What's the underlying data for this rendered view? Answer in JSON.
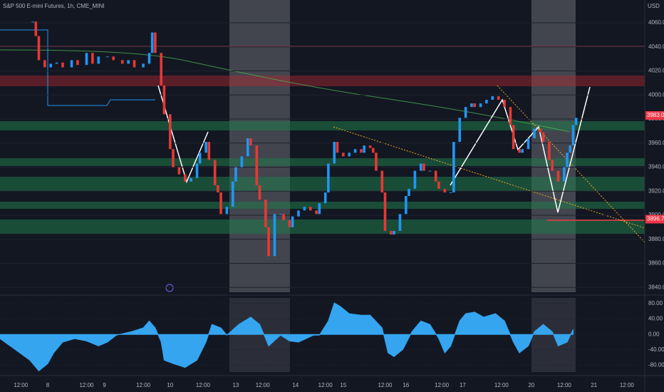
{
  "chart_data": [
    {
      "type": "candlestick",
      "title": "S&P 500 E-mini Futures, 1h, CME_MINI",
      "currency": "USD",
      "up_color": "#2196f3",
      "down_color": "#e53935",
      "xlim": [
        0,
        216
      ],
      "ylim": [
        3836,
        4079
      ],
      "xticks": [
        {
          "value": 7,
          "label": "12:00"
        },
        {
          "value": 16,
          "label": "8"
        },
        {
          "value": 29,
          "label": "12:00"
        },
        {
          "value": 35,
          "label": "9"
        },
        {
          "value": 48,
          "label": "12:00"
        },
        {
          "value": 57,
          "label": "10"
        },
        {
          "value": 68,
          "label": "12:00"
        },
        {
          "value": 79,
          "label": "13"
        },
        {
          "value": 88,
          "label": "12:00"
        },
        {
          "value": 99,
          "label": "14"
        },
        {
          "value": 109,
          "label": "12:00"
        },
        {
          "value": 115,
          "label": "15"
        },
        {
          "value": 129,
          "label": "12:00"
        },
        {
          "value": 136,
          "label": "16"
        },
        {
          "value": 148,
          "label": "12:00"
        },
        {
          "value": 155,
          "label": "17"
        },
        {
          "value": 168,
          "label": "12:00"
        },
        {
          "value": 178,
          "label": "20"
        },
        {
          "value": 189,
          "label": "12:00"
        },
        {
          "value": 199,
          "label": "21"
        },
        {
          "value": 210,
          "label": "12:00"
        }
      ],
      "yticks": [
        {
          "value": 3840,
          "label": "3840.00"
        },
        {
          "value": 3860,
          "label": "3860.00"
        },
        {
          "value": 3880,
          "label": "3880.00"
        },
        {
          "value": 3900,
          "label": "3900.00"
        },
        {
          "value": 3920,
          "label": "3920.00"
        },
        {
          "value": 3940,
          "label": "3940.00"
        },
        {
          "value": 3960,
          "label": "3960.00"
        },
        {
          "value": 3980,
          "label": "3980.00"
        },
        {
          "value": 4000,
          "label": "4000.00"
        },
        {
          "value": 4020,
          "label": "4020.00"
        },
        {
          "value": 4040,
          "label": "4040.00"
        },
        {
          "value": 4060,
          "label": "4060.00"
        }
      ],
      "price_labels": [
        {
          "value": 3983,
          "label": "3983.00"
        },
        {
          "value": 3896.75,
          "label": "3896.75"
        }
      ],
      "x": [
        11,
        12,
        13,
        15,
        17,
        19,
        21,
        24,
        26,
        29,
        31,
        33,
        36,
        38,
        41,
        43,
        45,
        48,
        50,
        51,
        52,
        54,
        55,
        57,
        58,
        60,
        62,
        64,
        66,
        67,
        69,
        70,
        72,
        73,
        74,
        76,
        78,
        79,
        81,
        83,
        84,
        86,
        87,
        89,
        90,
        92,
        94,
        95,
        97,
        98,
        100,
        102,
        104,
        106,
        107,
        109,
        110,
        112,
        113,
        115,
        117,
        119,
        121,
        122,
        124,
        125,
        126,
        128,
        129,
        131,
        132,
        134,
        136,
        137,
        139,
        141,
        142,
        144,
        146,
        147,
        149,
        151,
        152,
        154,
        156,
        158,
        159,
        161,
        163,
        165,
        167,
        169,
        171,
        172,
        174,
        175,
        177,
        179,
        181,
        182,
        184,
        185,
        187,
        189,
        190,
        191,
        192,
        193
      ],
      "values": [
        4061,
        4049,
        4029,
        4023,
        4026,
        4027,
        4023,
        4029,
        4025,
        4035,
        4026,
        4032,
        4032,
        4029,
        4026,
        4029,
        4023,
        4026,
        4035,
        4052,
        4035,
        4008,
        3984,
        3955,
        3940,
        3934,
        3928,
        3931,
        3943,
        3952,
        3961,
        3946,
        3925,
        3919,
        3901,
        3907,
        3928,
        3940,
        3949,
        3964,
        3958,
        3925,
        3913,
        3890,
        3866,
        3901,
        3901,
        3896,
        3890,
        3899,
        3904,
        3907,
        3904,
        3901,
        3910,
        3919,
        3943,
        3961,
        3952,
        3949,
        3952,
        3955,
        3952,
        3958,
        3956,
        3952,
        3937,
        3919,
        3887,
        3884,
        3887,
        3901,
        3916,
        3922,
        3937,
        3943,
        3937,
        3937,
        3928,
        3922,
        3919,
        3919,
        3961,
        3981,
        3990,
        3993,
        3990,
        3993,
        3996,
        3999,
        3996,
        3990,
        3975,
        3955,
        3952,
        3955,
        3964,
        3972,
        3969,
        3961,
        3946,
        3937,
        3928,
        3940,
        3952,
        3958,
        3975,
        3981
      ]
    },
    {
      "type": "area",
      "color": "#35a5f0",
      "xlim": [
        0,
        216
      ],
      "ylim": [
        -98,
        95
      ],
      "yticks": [
        {
          "value": 80,
          "label": "80.00"
        },
        {
          "value": 40,
          "label": "40.00"
        },
        {
          "value": 0,
          "label": "0.00"
        },
        {
          "value": -40,
          "label": "-40.00"
        },
        {
          "value": -80,
          "label": "-80.00"
        }
      ],
      "x": [
        0,
        5,
        10,
        13,
        16,
        18,
        21,
        25,
        29,
        33,
        36,
        39,
        44,
        48,
        50,
        52,
        54,
        55,
        58,
        62,
        66,
        69,
        71,
        74,
        76,
        80,
        84,
        87,
        90,
        94,
        97,
        100,
        105,
        107,
        110,
        112,
        114,
        117,
        121,
        124,
        128,
        130,
        132,
        135,
        138,
        141,
        144,
        147,
        149,
        151,
        154,
        156,
        159,
        162,
        166,
        169,
        172,
        174,
        177,
        179,
        182,
        185,
        187,
        190,
        192
      ],
      "values": [
        -11,
        -39,
        -67,
        -95,
        -76,
        -48,
        -20,
        -11,
        -17,
        -30,
        -20,
        -2,
        7,
        17,
        35,
        17,
        -20,
        -67,
        -76,
        -86,
        -67,
        -20,
        26,
        17,
        -2,
        26,
        45,
        26,
        -30,
        -2,
        -17,
        -20,
        -2,
        -2,
        35,
        82,
        73,
        54,
        50,
        50,
        17,
        -48,
        -58,
        -39,
        7,
        35,
        26,
        -11,
        -48,
        -30,
        35,
        54,
        58,
        45,
        54,
        35,
        -20,
        -48,
        -30,
        7,
        26,
        7,
        -30,
        -20,
        13
      ]
    }
  ]
}
